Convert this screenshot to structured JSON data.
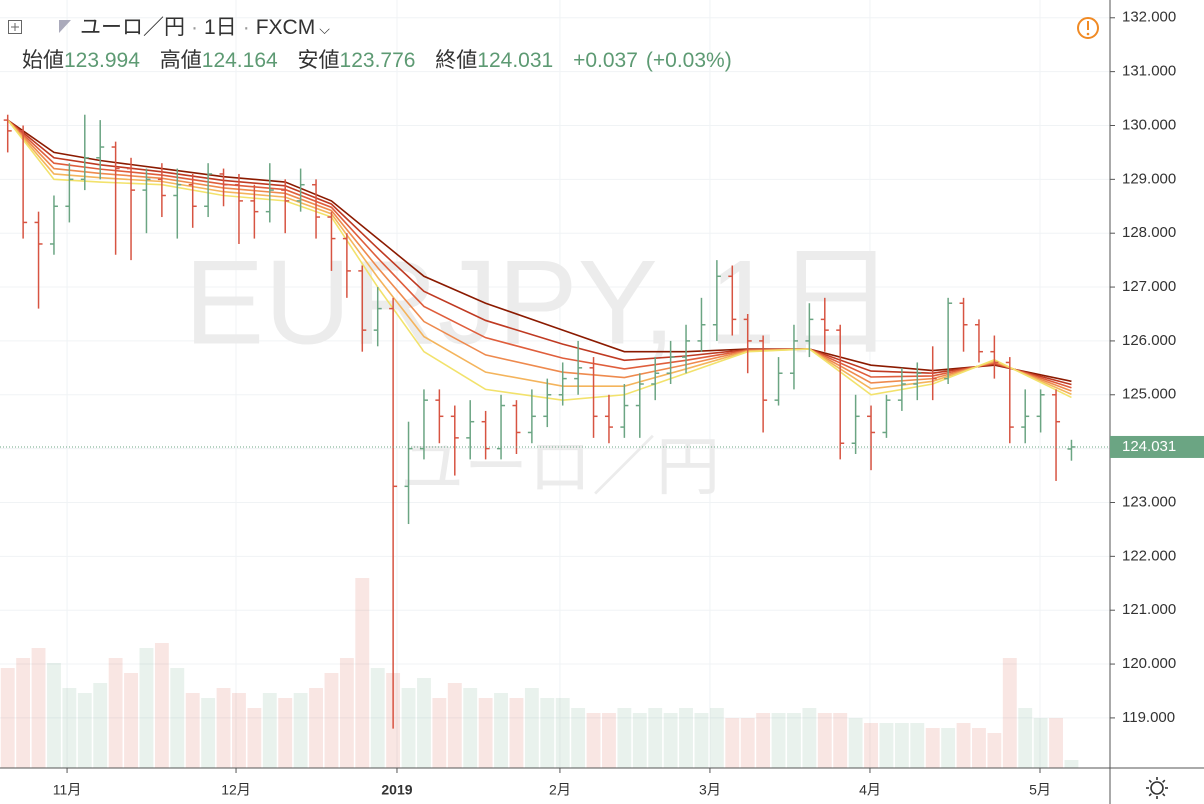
{
  "header": {
    "symbol_name": "ユーロ／円",
    "interval": "1日",
    "source": "FXCM",
    "open_label": "始値",
    "high_label": "高値",
    "low_label": "安値",
    "close_label": "終値",
    "change": "+0.037",
    "change_pct": "(+0.03%)"
  },
  "watermark": "EURJPY, 1日",
  "chart_data": {
    "type": "ohlc",
    "up_color": "#6ba583",
    "down_color": "#d75442",
    "grid": true,
    "xlim": [
      0,
      72
    ],
    "ylim": [
      118.07,
      132.33
    ],
    "xticks": [
      {
        "value": 4.35,
        "label": "11月"
      },
      {
        "value": 15.31,
        "label": "12月"
      },
      {
        "value": 25.75,
        "label": "2019"
      },
      {
        "value": 36.32,
        "label": "2月"
      },
      {
        "value": 46.05,
        "label": "3月"
      },
      {
        "value": 56.43,
        "label": "4月"
      },
      {
        "value": 67.46,
        "label": "5月"
      }
    ],
    "yticks": [
      {
        "value": 119,
        "label": "119.000"
      },
      {
        "value": 120,
        "label": "120.000"
      },
      {
        "value": 121,
        "label": "121.000"
      },
      {
        "value": 122,
        "label": "122.000"
      },
      {
        "value": 123,
        "label": "123.000"
      },
      {
        "value": 124,
        "label": "124.000"
      },
      {
        "value": 125,
        "label": "125.000"
      },
      {
        "value": 126,
        "label": "126.000"
      },
      {
        "value": 127,
        "label": "127.000"
      },
      {
        "value": 128,
        "label": "128.000"
      },
      {
        "value": 129,
        "label": "129.000"
      },
      {
        "value": 130,
        "label": "130.000"
      },
      {
        "value": 131,
        "label": "131.000"
      },
      {
        "value": 132,
        "label": "132.000"
      }
    ],
    "ohlc": [
      [
        130.1,
        130.2,
        129.5,
        129.9
      ],
      [
        129.9,
        130.0,
        127.9,
        128.2
      ],
      [
        128.2,
        128.4,
        126.6,
        127.8
      ],
      [
        127.8,
        128.7,
        127.6,
        128.5
      ],
      [
        128.5,
        129.3,
        128.2,
        129.0
      ],
      [
        129.0,
        130.2,
        128.8,
        129.4
      ],
      [
        129.4,
        130.1,
        129.0,
        129.6
      ],
      [
        129.6,
        129.7,
        127.6,
        129.2
      ],
      [
        129.2,
        129.4,
        127.5,
        128.8
      ],
      [
        128.8,
        129.2,
        128.0,
        129.0
      ],
      [
        129.0,
        129.3,
        128.3,
        128.7
      ],
      [
        128.7,
        129.2,
        127.9,
        128.9
      ],
      [
        128.9,
        129.1,
        128.1,
        128.5
      ],
      [
        128.5,
        129.3,
        128.3,
        129.1
      ],
      [
        129.1,
        129.2,
        128.5,
        128.9
      ],
      [
        128.9,
        129.1,
        127.8,
        128.6
      ],
      [
        128.6,
        128.9,
        127.9,
        128.4
      ],
      [
        128.4,
        129.3,
        128.2,
        128.8
      ],
      [
        128.8,
        129.0,
        128.0,
        128.6
      ],
      [
        128.6,
        129.2,
        128.4,
        128.9
      ],
      [
        128.9,
        129.0,
        127.9,
        128.3
      ],
      [
        128.3,
        128.4,
        127.3,
        127.9
      ],
      [
        127.9,
        128.0,
        126.8,
        127.3
      ],
      [
        127.3,
        127.4,
        125.8,
        126.2
      ],
      [
        126.2,
        127.0,
        125.9,
        126.6
      ],
      [
        126.6,
        126.8,
        118.8,
        123.3
      ],
      [
        123.3,
        124.5,
        122.6,
        124.0
      ],
      [
        124.0,
        125.1,
        123.8,
        124.9
      ],
      [
        124.9,
        125.1,
        124.1,
        124.6
      ],
      [
        124.6,
        124.8,
        123.5,
        124.2
      ],
      [
        124.2,
        124.9,
        123.8,
        124.5
      ],
      [
        124.5,
        124.7,
        123.8,
        124.0
      ],
      [
        124.0,
        125.0,
        123.8,
        124.8
      ],
      [
        124.8,
        124.9,
        123.9,
        124.3
      ],
      [
        124.3,
        125.1,
        124.1,
        124.6
      ],
      [
        124.6,
        125.3,
        124.4,
        125.0
      ],
      [
        125.0,
        125.6,
        124.8,
        125.3
      ],
      [
        125.3,
        126.0,
        125.0,
        125.5
      ],
      [
        125.5,
        125.7,
        124.2,
        124.6
      ],
      [
        124.6,
        125.0,
        124.1,
        124.4
      ],
      [
        124.4,
        125.2,
        124.2,
        124.8
      ],
      [
        124.8,
        125.4,
        124.2,
        125.2
      ],
      [
        125.2,
        125.7,
        124.9,
        125.4
      ],
      [
        125.4,
        126.0,
        125.2,
        125.7
      ],
      [
        125.7,
        126.3,
        125.4,
        126.0
      ],
      [
        126.0,
        126.8,
        125.8,
        126.3
      ],
      [
        126.3,
        127.5,
        126.0,
        127.2
      ],
      [
        127.2,
        127.4,
        126.1,
        126.4
      ],
      [
        126.4,
        126.5,
        125.4,
        126.0
      ],
      [
        126.0,
        126.1,
        124.3,
        124.9
      ],
      [
        124.9,
        125.7,
        124.8,
        125.4
      ],
      [
        125.4,
        126.3,
        125.1,
        126.0
      ],
      [
        126.0,
        126.7,
        125.7,
        126.4
      ],
      [
        126.4,
        126.8,
        125.8,
        126.2
      ],
      [
        126.2,
        126.3,
        123.8,
        124.1
      ],
      [
        124.1,
        125.0,
        123.9,
        124.6
      ],
      [
        124.6,
        124.8,
        123.6,
        124.3
      ],
      [
        124.3,
        125.0,
        124.2,
        124.9
      ],
      [
        124.9,
        125.5,
        124.7,
        125.2
      ],
      [
        125.2,
        125.6,
        124.9,
        125.4
      ],
      [
        125.4,
        125.9,
        124.9,
        125.3
      ],
      [
        125.3,
        126.8,
        125.2,
        126.7
      ],
      [
        126.7,
        126.8,
        125.8,
        126.3
      ],
      [
        126.3,
        126.4,
        125.6,
        125.8
      ],
      [
        125.8,
        126.1,
        125.3,
        125.6
      ],
      [
        125.6,
        125.7,
        124.1,
        124.4
      ],
      [
        124.4,
        125.1,
        124.1,
        124.6
      ],
      [
        124.6,
        125.1,
        124.3,
        125.0
      ],
      [
        125.0,
        125.1,
        123.4,
        124.5
      ],
      [
        123.994,
        124.164,
        123.776,
        124.031
      ]
    ],
    "volume_lim": [
      0,
      200
    ],
    "volume": [
      100,
      110,
      120,
      105,
      80,
      75,
      85,
      110,
      95,
      120,
      125,
      100,
      75,
      70,
      80,
      75,
      60,
      75,
      70,
      75,
      80,
      95,
      110,
      190,
      100,
      95,
      80,
      90,
      70,
      85,
      80,
      70,
      75,
      70,
      80,
      70,
      70,
      60,
      55,
      55,
      60,
      55,
      60,
      55,
      60,
      55,
      60,
      50,
      50,
      55,
      55,
      55,
      60,
      55,
      55,
      50,
      45,
      45,
      45,
      45,
      40,
      40,
      45,
      40,
      35,
      110,
      60,
      50,
      50,
      8
    ],
    "ribbon_x": [
      0,
      3,
      6,
      10,
      14,
      18,
      21,
      24,
      27,
      31,
      36,
      40,
      44,
      48,
      52,
      56,
      60,
      64,
      69
    ],
    "series": [
      {
        "color": "#8b1a00",
        "values": [
          130.1,
          129.5,
          129.35,
          129.2,
          129.05,
          128.95,
          128.6,
          127.9,
          127.2,
          126.7,
          126.2,
          125.8,
          125.8,
          125.85,
          125.85,
          125.55,
          125.45,
          125.55,
          125.25
        ]
      },
      {
        "color": "#bf3a22",
        "values": [
          130.1,
          129.4,
          129.27,
          129.14,
          128.98,
          128.88,
          128.54,
          127.72,
          126.92,
          126.38,
          125.94,
          125.64,
          125.72,
          125.84,
          125.85,
          125.44,
          125.4,
          125.57,
          125.19
        ]
      },
      {
        "color": "#df5e3c",
        "values": [
          130.1,
          129.3,
          129.19,
          129.08,
          128.91,
          128.81,
          128.48,
          127.54,
          126.64,
          126.06,
          125.68,
          125.48,
          125.64,
          125.83,
          125.85,
          125.33,
          125.35,
          125.59,
          125.13
        ]
      },
      {
        "color": "#ee8a4e",
        "values": [
          130.1,
          129.2,
          129.11,
          129.02,
          128.84,
          128.74,
          128.42,
          127.36,
          126.36,
          125.74,
          125.42,
          125.32,
          125.56,
          125.82,
          125.85,
          125.22,
          125.3,
          125.61,
          125.07
        ]
      },
      {
        "color": "#f4b45c",
        "values": [
          130.1,
          129.1,
          129.03,
          128.96,
          128.77,
          128.67,
          128.36,
          127.18,
          126.08,
          125.42,
          125.16,
          125.16,
          125.48,
          125.81,
          125.85,
          125.11,
          125.25,
          125.63,
          125.01
        ]
      },
      {
        "color": "#f2e26c",
        "values": [
          130.1,
          129.0,
          128.95,
          128.9,
          128.7,
          128.6,
          128.3,
          127.0,
          125.8,
          125.1,
          124.9,
          125.0,
          125.4,
          125.8,
          125.85,
          125.0,
          125.2,
          125.65,
          124.95
        ]
      }
    ]
  }
}
